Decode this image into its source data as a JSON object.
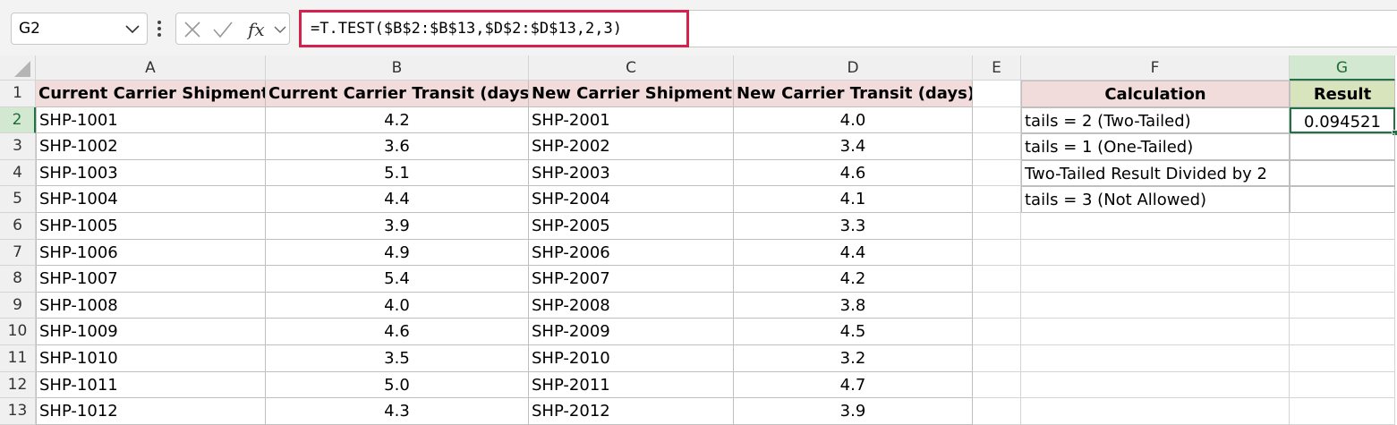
{
  "name_box": "G2",
  "formula": "=T.TEST($B$2:$B$13,$D$2:$D$13,2,3)",
  "column_headers": [
    "A",
    "B",
    "C",
    "D",
    "E",
    "F",
    "G"
  ],
  "row_headers": [
    1,
    2,
    3,
    4,
    5,
    6,
    7,
    8,
    9,
    10,
    11,
    12,
    13
  ],
  "main_table": {
    "headers": [
      "Current Carrier Shipment",
      "Current Carrier Transit (days)",
      "New Carrier Shipment",
      "New Carrier Transit (days)"
    ],
    "rows": [
      [
        "SHP-1001",
        "4.2",
        "SHP-2001",
        "4.0"
      ],
      [
        "SHP-1002",
        "3.6",
        "SHP-2002",
        "3.4"
      ],
      [
        "SHP-1003",
        "5.1",
        "SHP-2003",
        "4.6"
      ],
      [
        "SHP-1004",
        "4.4",
        "SHP-2004",
        "4.1"
      ],
      [
        "SHP-1005",
        "3.9",
        "SHP-2005",
        "3.3"
      ],
      [
        "SHP-1006",
        "4.9",
        "SHP-2006",
        "4.4"
      ],
      [
        "SHP-1007",
        "5.4",
        "SHP-2007",
        "4.2"
      ],
      [
        "SHP-1008",
        "4.0",
        "SHP-2008",
        "3.8"
      ],
      [
        "SHP-1009",
        "4.6",
        "SHP-2009",
        "4.5"
      ],
      [
        "SHP-1010",
        "3.5",
        "SHP-2010",
        "3.2"
      ],
      [
        "SHP-1011",
        "5.0",
        "SHP-2011",
        "4.7"
      ],
      [
        "SHP-1012",
        "4.3",
        "SHP-2012",
        "3.9"
      ]
    ]
  },
  "side_table": {
    "headers": [
      "Calculation",
      "Result"
    ],
    "rows": [
      [
        "tails = 2 (Two-Tailed)",
        "0.094521"
      ],
      [
        "tails = 1 (One-Tailed)"
      ],
      [
        "Two-Tailed Result Divided by 2"
      ],
      [
        "tails = 3 (Not Allowed)"
      ]
    ]
  }
}
